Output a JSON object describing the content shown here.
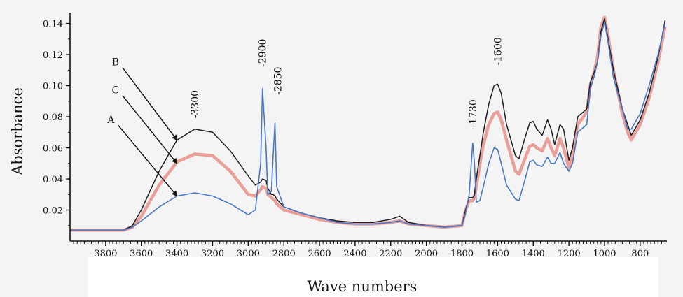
{
  "chart_data": {
    "type": "line",
    "xlabel": "Wave numbers",
    "ylabel": "Absorbance",
    "x_reversed": true,
    "xlim": [
      4000,
      650
    ],
    "ylim": [
      0.0,
      0.147
    ],
    "x_ticks": [
      3800,
      3600,
      3400,
      3200,
      3000,
      2800,
      2600,
      2400,
      2200,
      2000,
      1800,
      1600,
      1400,
      1200,
      1000,
      800
    ],
    "y_ticks": [
      0.02,
      0.04,
      0.06,
      0.08,
      0.1,
      0.12,
      0.14
    ],
    "y_tick_labels": [
      "0.02",
      "0.04",
      "0.06",
      "0.08",
      "0.10",
      "0.12",
      "0.14"
    ],
    "grid": false,
    "colors": {
      "A": "#4a78c8",
      "B": "#1f1f1f",
      "C": "#e8908a"
    },
    "series": [
      {
        "name": "A",
        "x": [
          4000,
          3700,
          3650,
          3600,
          3500,
          3400,
          3300,
          3200,
          3100,
          3000,
          2960,
          2930,
          2920,
          2900,
          2890,
          2870,
          2860,
          2850,
          2840,
          2800,
          2700,
          2600,
          2500,
          2400,
          2300,
          2200,
          2150,
          2100,
          2000,
          1900,
          1800,
          1780,
          1760,
          1740,
          1730,
          1720,
          1700,
          1680,
          1650,
          1620,
          1600,
          1580,
          1550,
          1500,
          1480,
          1450,
          1420,
          1400,
          1380,
          1350,
          1320,
          1300,
          1280,
          1250,
          1230,
          1200,
          1180,
          1150,
          1100,
          1080,
          1060,
          1040,
          1020,
          1000,
          980,
          950,
          900,
          870,
          850,
          800,
          750,
          700,
          660
        ],
        "y": [
          0.007,
          0.007,
          0.009,
          0.013,
          0.022,
          0.029,
          0.031,
          0.029,
          0.024,
          0.017,
          0.02,
          0.05,
          0.098,
          0.06,
          0.03,
          0.032,
          0.055,
          0.076,
          0.035,
          0.022,
          0.018,
          0.015,
          0.012,
          0.011,
          0.011,
          0.012,
          0.013,
          0.011,
          0.01,
          0.009,
          0.01,
          0.018,
          0.03,
          0.063,
          0.05,
          0.025,
          0.026,
          0.035,
          0.05,
          0.06,
          0.059,
          0.05,
          0.036,
          0.027,
          0.026,
          0.038,
          0.051,
          0.052,
          0.049,
          0.048,
          0.054,
          0.05,
          0.05,
          0.057,
          0.05,
          0.045,
          0.05,
          0.07,
          0.075,
          0.098,
          0.105,
          0.115,
          0.132,
          0.141,
          0.128,
          0.105,
          0.085,
          0.072,
          0.072,
          0.082,
          0.1,
          0.12,
          0.14
        ]
      },
      {
        "name": "B",
        "x": [
          4000,
          3700,
          3650,
          3600,
          3500,
          3400,
          3300,
          3200,
          3100,
          3000,
          2960,
          2930,
          2920,
          2900,
          2890,
          2870,
          2860,
          2850,
          2840,
          2800,
          2700,
          2600,
          2500,
          2400,
          2300,
          2200,
          2150,
          2100,
          2000,
          1900,
          1800,
          1780,
          1760,
          1740,
          1730,
          1720,
          1700,
          1680,
          1650,
          1620,
          1600,
          1580,
          1550,
          1500,
          1480,
          1450,
          1420,
          1400,
          1380,
          1350,
          1320,
          1300,
          1280,
          1250,
          1230,
          1200,
          1180,
          1150,
          1100,
          1080,
          1060,
          1040,
          1020,
          1000,
          980,
          950,
          900,
          870,
          850,
          800,
          750,
          700,
          660
        ],
        "y": [
          0.007,
          0.007,
          0.01,
          0.02,
          0.045,
          0.065,
          0.072,
          0.07,
          0.058,
          0.042,
          0.036,
          0.038,
          0.04,
          0.039,
          0.034,
          0.03,
          0.03,
          0.029,
          0.027,
          0.022,
          0.018,
          0.015,
          0.013,
          0.012,
          0.012,
          0.014,
          0.016,
          0.012,
          0.01,
          0.009,
          0.01,
          0.02,
          0.028,
          0.028,
          0.03,
          0.04,
          0.055,
          0.07,
          0.088,
          0.1,
          0.101,
          0.095,
          0.075,
          0.055,
          0.053,
          0.065,
          0.076,
          0.077,
          0.072,
          0.068,
          0.078,
          0.072,
          0.062,
          0.075,
          0.072,
          0.052,
          0.06,
          0.08,
          0.085,
          0.102,
          0.108,
          0.115,
          0.135,
          0.143,
          0.13,
          0.11,
          0.085,
          0.075,
          0.068,
          0.078,
          0.095,
          0.118,
          0.142
        ]
      },
      {
        "name": "C",
        "x": [
          4000,
          3700,
          3650,
          3600,
          3500,
          3400,
          3300,
          3200,
          3100,
          3000,
          2960,
          2930,
          2920,
          2900,
          2890,
          2870,
          2860,
          2850,
          2840,
          2800,
          2700,
          2600,
          2500,
          2400,
          2300,
          2200,
          2150,
          2100,
          2000,
          1900,
          1800,
          1780,
          1760,
          1740,
          1730,
          1720,
          1700,
          1680,
          1650,
          1620,
          1600,
          1580,
          1550,
          1500,
          1480,
          1450,
          1420,
          1400,
          1380,
          1350,
          1320,
          1300,
          1280,
          1250,
          1230,
          1200,
          1180,
          1150,
          1100,
          1080,
          1060,
          1040,
          1020,
          1000,
          980,
          950,
          900,
          870,
          850,
          800,
          750,
          700,
          660
        ],
        "y": [
          0.007,
          0.007,
          0.009,
          0.016,
          0.036,
          0.051,
          0.056,
          0.055,
          0.045,
          0.03,
          0.029,
          0.033,
          0.035,
          0.034,
          0.03,
          0.028,
          0.027,
          0.026,
          0.024,
          0.02,
          0.017,
          0.014,
          0.012,
          0.011,
          0.011,
          0.012,
          0.013,
          0.011,
          0.01,
          0.009,
          0.01,
          0.02,
          0.026,
          0.026,
          0.028,
          0.035,
          0.05,
          0.062,
          0.075,
          0.082,
          0.083,
          0.078,
          0.065,
          0.045,
          0.043,
          0.052,
          0.061,
          0.062,
          0.06,
          0.058,
          0.066,
          0.06,
          0.055,
          0.066,
          0.06,
          0.047,
          0.055,
          0.075,
          0.083,
          0.1,
          0.108,
          0.118,
          0.138,
          0.144,
          0.132,
          0.11,
          0.082,
          0.07,
          0.065,
          0.075,
          0.092,
          0.115,
          0.138
        ]
      }
    ],
    "annotations": [
      {
        "text": "-3300",
        "x": 3300,
        "y": 0.079,
        "rotated": true
      },
      {
        "text": "-2900",
        "x": 2920,
        "y": 0.112,
        "rotated": true
      },
      {
        "text": "-2850",
        "x": 2835,
        "y": 0.094,
        "rotated": true
      },
      {
        "text": "-1730",
        "x": 1740,
        "y": 0.073,
        "rotated": true
      },
      {
        "text": "-1600",
        "x": 1600,
        "y": 0.113,
        "rotated": true
      }
    ],
    "series_labels": [
      {
        "text": "B",
        "x": 3745,
        "y": 0.113,
        "arrow_to": [
          3400,
          0.065
        ]
      },
      {
        "text": "C",
        "x": 3745,
        "y": 0.095,
        "arrow_to": [
          3400,
          0.05
        ]
      },
      {
        "text": "A",
        "x": 3770,
        "y": 0.076,
        "arrow_to": [
          3400,
          0.029
        ]
      }
    ]
  }
}
